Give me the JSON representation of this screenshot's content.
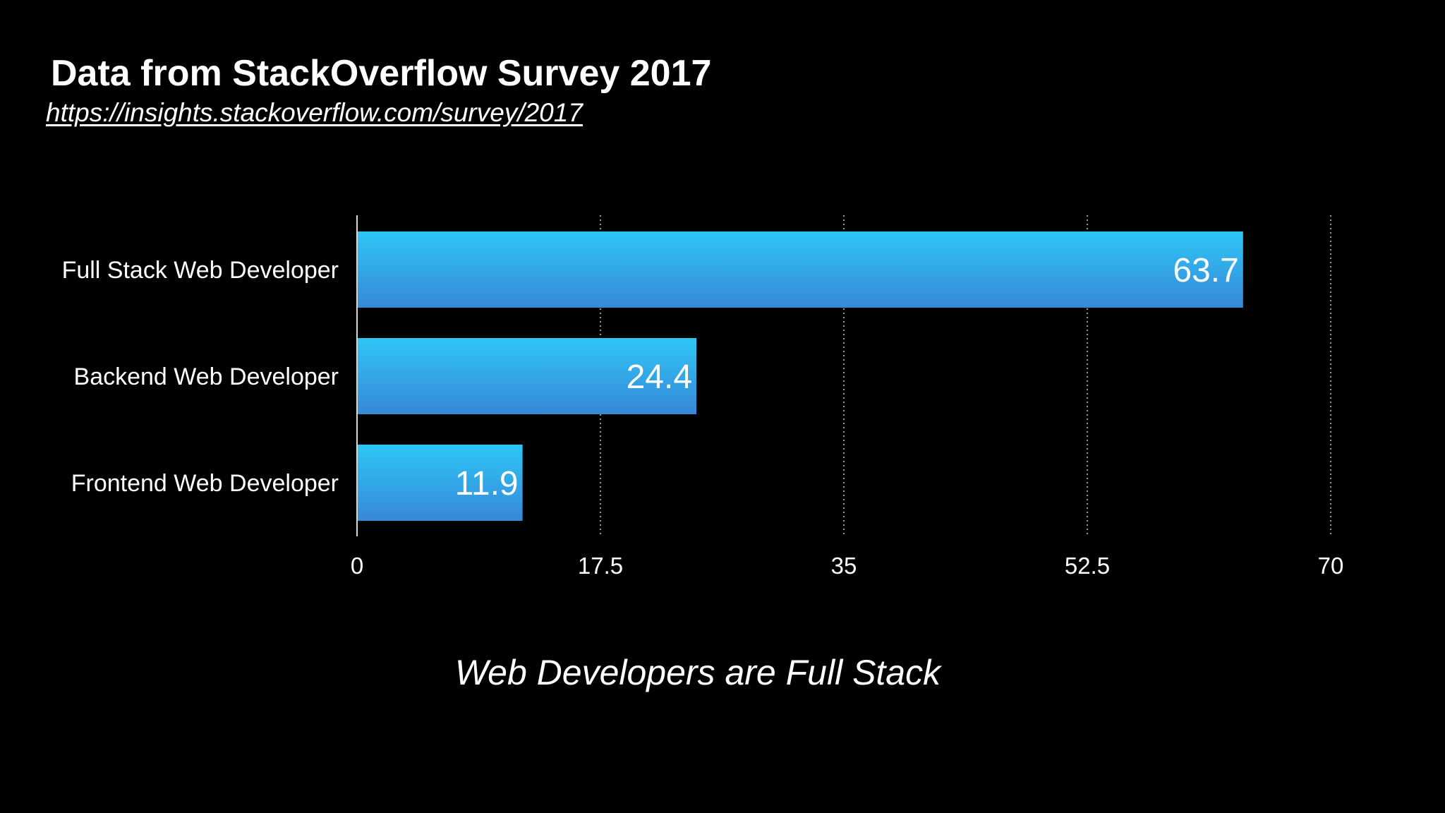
{
  "slide": {
    "title": "Data from StackOverflow Survey 2017",
    "source_url": "https://insights.stackoverflow.com/survey/2017",
    "caption": "Web Developers are Full Stack"
  },
  "colors": {
    "background": "#000000",
    "bar_top": "#2ec6f6",
    "bar_bottom": "#3788d8",
    "text": "#ffffff",
    "grid": "#9a9a9a"
  },
  "chart_data": {
    "type": "bar",
    "orientation": "horizontal",
    "categories": [
      "Full Stack Web Developer",
      "Backend Web Developer",
      "Frontend Web Developer"
    ],
    "values": [
      63.7,
      24.4,
      11.9
    ],
    "x_ticks": [
      "0",
      "17.5",
      "35",
      "52.5",
      "70"
    ],
    "xlim": [
      0,
      70
    ],
    "grid": "vertical-dotted",
    "legend": "none",
    "data_labels": true
  }
}
